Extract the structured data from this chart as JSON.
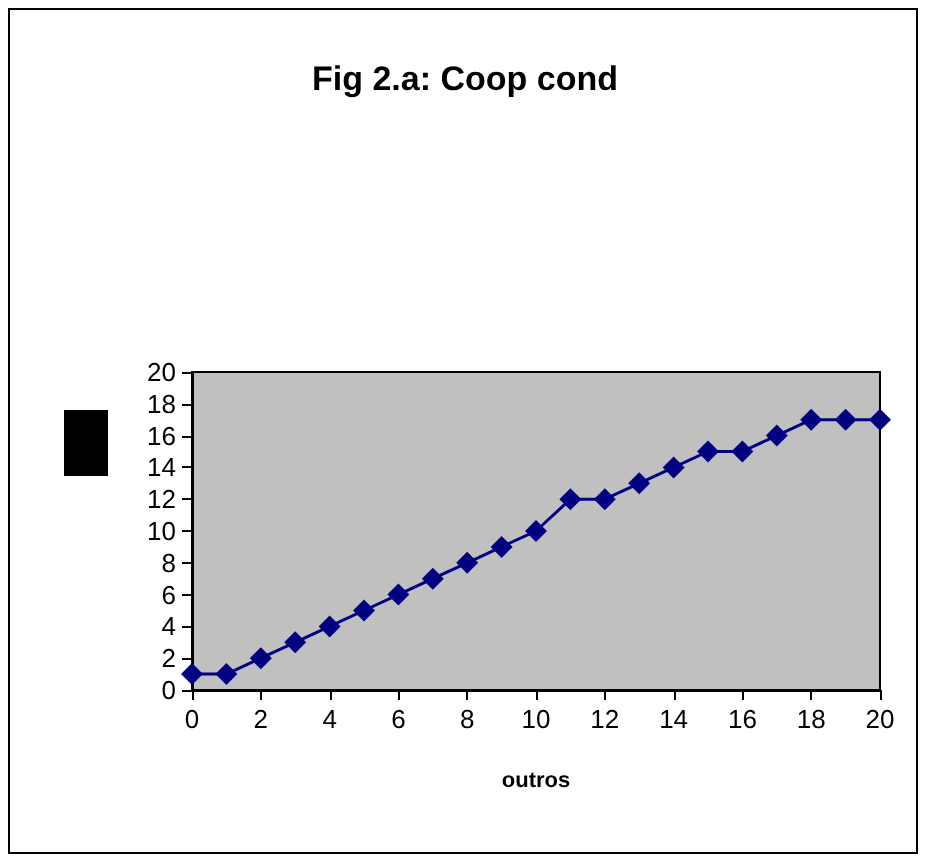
{
  "chart_data": {
    "type": "line",
    "title": "Fig 2.a: Coop cond",
    "xlabel": "outros",
    "x": [
      0,
      1,
      2,
      3,
      4,
      5,
      6,
      7,
      8,
      9,
      10,
      11,
      12,
      13,
      14,
      15,
      16,
      17,
      18,
      19,
      20
    ],
    "values": [
      1,
      1,
      2,
      3,
      4,
      5,
      6,
      7,
      8,
      9,
      10,
      12,
      12,
      13,
      14,
      15,
      15,
      16,
      17,
      17,
      17
    ],
    "color": "#000080",
    "marker": "diamond",
    "line_style": "solid",
    "xlim": [
      0,
      20
    ],
    "xticks": [
      0,
      2,
      4,
      6,
      8,
      10,
      12,
      14,
      16,
      18,
      20
    ],
    "ylim": [
      0,
      20
    ],
    "yticks": [
      0,
      2,
      4,
      6,
      8,
      10,
      12,
      14,
      16,
      18,
      20
    ]
  }
}
